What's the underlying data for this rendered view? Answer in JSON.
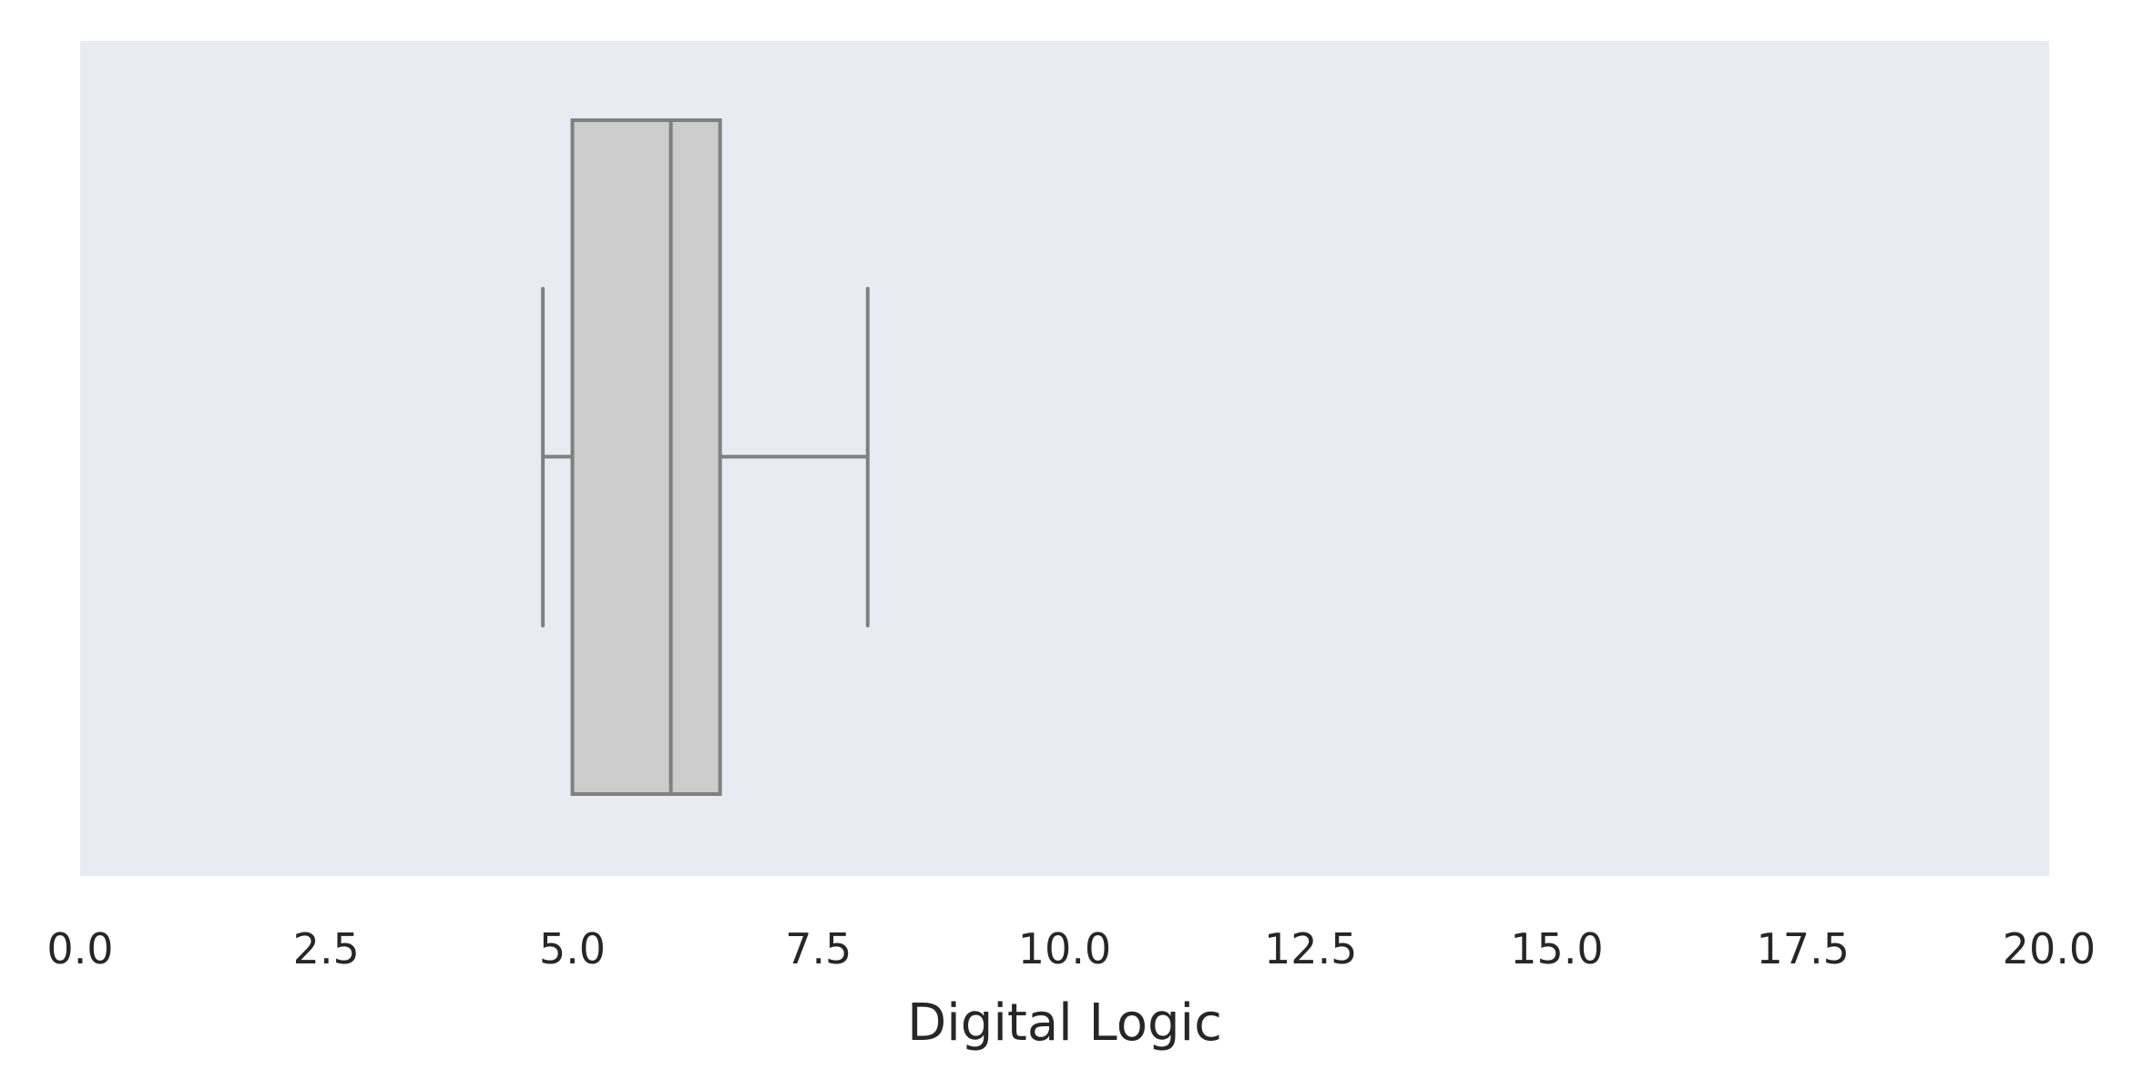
{
  "chart_data": {
    "type": "box",
    "orientation": "horizontal",
    "xlabel": "Digital Logic",
    "ylabel": "",
    "title": "",
    "xlim": [
      0,
      20
    ],
    "xticks": [
      0,
      2.5,
      5,
      7.5,
      10,
      12.5,
      15,
      17.5,
      20
    ],
    "xtick_labels": [
      "0.0",
      "2.5",
      "5.0",
      "7.5",
      "10.0",
      "12.5",
      "15.0",
      "17.5",
      "20.0"
    ],
    "grid": false,
    "box": {
      "whisker_low": 4.7,
      "q1": 5.0,
      "median": 6.0,
      "q3": 6.5,
      "whisker_high": 8.0
    },
    "colors": {
      "plot_background": "#eaeaf2",
      "box_fill": "#cccccc",
      "box_edge": "#808080",
      "text": "#262626"
    }
  }
}
